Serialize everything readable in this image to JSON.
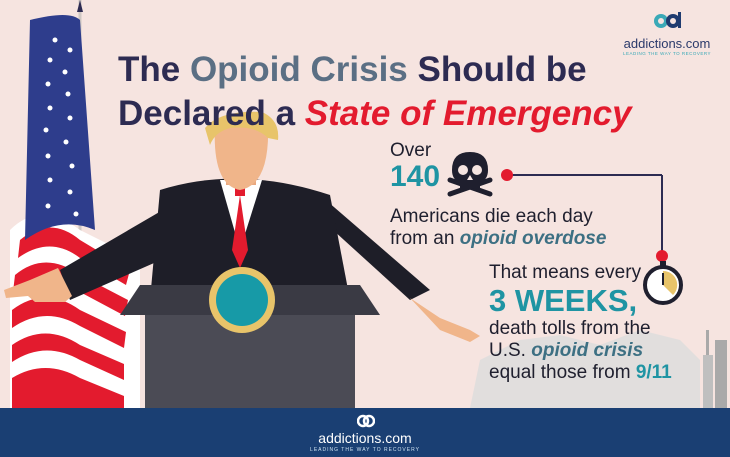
{
  "title": {
    "line1_prefix": "The ",
    "line1_highlight": "Opioid Crisis",
    "line1_suffix": " Should be",
    "line2_prefix": "Declared a ",
    "line2_emphasis": "State of Emergency"
  },
  "logo": {
    "brand": "addictions.com",
    "tagline": "LEADING THE WAY TO RECOVERY"
  },
  "stat1": {
    "over": "Over",
    "number": "140",
    "line1": "Americans die each day",
    "line2_prefix": "from an ",
    "line2_emphasis": "opioid overdose",
    "icon": "skull-crossbones-icon"
  },
  "stat2": {
    "intro": "That means every",
    "period": "3 WEEKS,",
    "line1": "death tolls from the",
    "line2_prefix": "U.S. ",
    "line2_emphasis": "opioid crisis",
    "line3_prefix": "equal those from ",
    "line3_emphasis": "9/11",
    "icon": "stopwatch-icon"
  },
  "footer": {
    "brand": "addictions.com",
    "tagline": "LEADING THE WAY TO RECOVERY"
  },
  "colors": {
    "background": "#f6e4e0",
    "title_dark": "#2d2b52",
    "title_gray": "#5b6f84",
    "emergency_red": "#e31b2e",
    "teal": "#1f94a3",
    "footer_blue": "#1a3f73"
  }
}
